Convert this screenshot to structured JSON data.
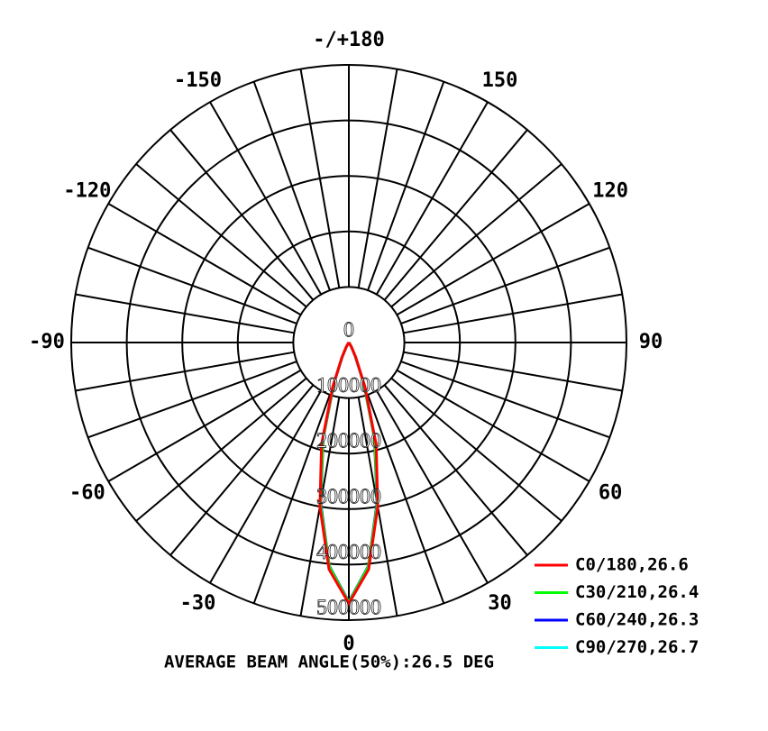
{
  "chart_data": {
    "type": "polar",
    "title": "AVERAGE BEAM ANGLE(50%):26.5 DEG",
    "theta": [
      -40,
      -35,
      -30,
      -25,
      -20,
      -15,
      -10,
      -5,
      0,
      5,
      10,
      15,
      20,
      25,
      30,
      35,
      40
    ],
    "thetaticks": [
      0,
      30,
      60,
      90,
      120,
      150,
      {
        "value": 180,
        "label": "-/+180"
      },
      -150,
      -120,
      -90,
      -60,
      -30
    ],
    "rlim": [
      0,
      500000
    ],
    "rticks": [
      0,
      100000,
      200000,
      300000,
      400000,
      500000
    ],
    "grid": true,
    "legend": "lower right",
    "series": [
      {
        "name": "C0/180,26.6",
        "color": "#ff0000",
        "values": [
          0,
          2000,
          10000,
          30000,
          85000,
          190000,
          300000,
          410000,
          470000,
          410000,
          300000,
          190000,
          85000,
          30000,
          10000,
          2000,
          0
        ]
      },
      {
        "name": "C30/210,26.4",
        "color": "#00ff00",
        "values": [
          0,
          1000,
          8000,
          28000,
          80000,
          180000,
          295000,
          405000,
          468000,
          405000,
          295000,
          180000,
          80000,
          28000,
          8000,
          1000,
          0
        ]
      },
      {
        "name": "C60/240,26.3",
        "color": "#0000ff",
        "values": [
          0,
          1000,
          8000,
          27000,
          79000,
          178000,
          293000,
          404000,
          467000,
          404000,
          293000,
          178000,
          79000,
          27000,
          8000,
          1000,
          0
        ]
      },
      {
        "name": "C90/270,26.7",
        "color": "#00ffff",
        "values": [
          0,
          1000,
          9000,
          29000,
          82000,
          182000,
          296000,
          406000,
          468000,
          406000,
          296000,
          182000,
          82000,
          29000,
          9000,
          1000,
          0
        ]
      }
    ]
  }
}
